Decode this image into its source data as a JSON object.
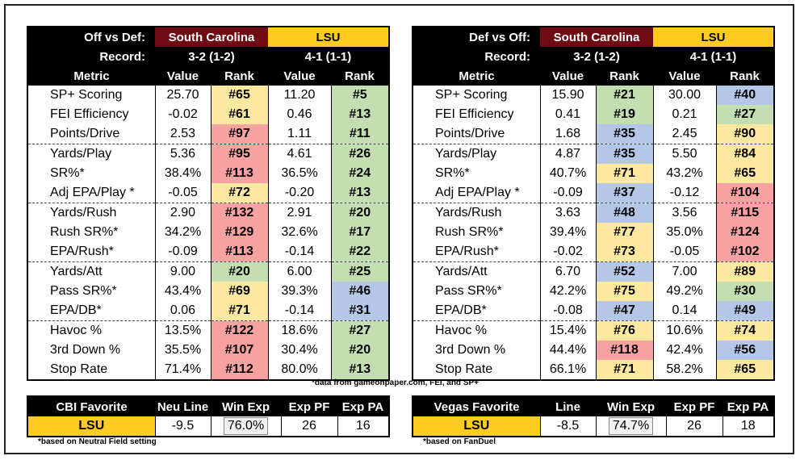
{
  "colors": {
    "sc": "#6f0b12",
    "lsu": "#fdcb22",
    "red": "#f8a3a1",
    "yellow": "#fde8a0",
    "green": "#c3deb1",
    "blue": "#b4c7e7"
  },
  "left_panel": {
    "title": "Off vs Def:",
    "team1": "South Carolina",
    "team2": "LSU",
    "record_label": "Record:",
    "team1_record": "3-2 (1-2)",
    "team2_record": "4-1 (1-1)",
    "col_metric": "Metric",
    "col_value": "Value",
    "col_rank": "Rank",
    "rows": [
      {
        "metric": "SP+ Scoring",
        "v1": "25.70",
        "r1": "#65",
        "c1": "yellow",
        "v2": "11.20",
        "r2": "#5",
        "c2": "green"
      },
      {
        "metric": "FEI Efficiency",
        "v1": "-0.02",
        "r1": "#61",
        "c1": "yellow",
        "v2": "0.46",
        "r2": "#13",
        "c2": "green"
      },
      {
        "metric": "Points/Drive",
        "v1": "2.53",
        "r1": "#97",
        "c1": "red",
        "v2": "1.11",
        "r2": "#11",
        "c2": "green"
      },
      {
        "metric": "Yards/Play",
        "v1": "5.36",
        "r1": "#95",
        "c1": "red",
        "v2": "4.61",
        "r2": "#26",
        "c2": "green"
      },
      {
        "metric": "SR%*",
        "v1": "38.4%",
        "r1": "#113",
        "c1": "red",
        "v2": "36.5%",
        "r2": "#24",
        "c2": "green"
      },
      {
        "metric": "Adj EPA/Play *",
        "v1": "-0.05",
        "r1": "#72",
        "c1": "yellow",
        "v2": "-0.20",
        "r2": "#13",
        "c2": "green"
      },
      {
        "metric": "Yards/Rush",
        "v1": "2.90",
        "r1": "#132",
        "c1": "red",
        "v2": "2.91",
        "r2": "#20",
        "c2": "green"
      },
      {
        "metric": "Rush SR%*",
        "v1": "34.2%",
        "r1": "#129",
        "c1": "red",
        "v2": "32.6%",
        "r2": "#17",
        "c2": "green"
      },
      {
        "metric": "EPA/Rush*",
        "v1": "-0.09",
        "r1": "#113",
        "c1": "red",
        "v2": "-0.14",
        "r2": "#22",
        "c2": "green"
      },
      {
        "metric": "Yards/Att",
        "v1": "9.00",
        "r1": "#20",
        "c1": "green",
        "v2": "6.00",
        "r2": "#25",
        "c2": "green"
      },
      {
        "metric": "Pass SR%*",
        "v1": "43.4%",
        "r1": "#69",
        "c1": "yellow",
        "v2": "39.3%",
        "r2": "#46",
        "c2": "blue"
      },
      {
        "metric": "EPA/DB*",
        "v1": "0.06",
        "r1": "#71",
        "c1": "yellow",
        "v2": "-0.14",
        "r2": "#31",
        "c2": "blue"
      },
      {
        "metric": "Havoc %",
        "v1": "13.5%",
        "r1": "#122",
        "c1": "red",
        "v2": "18.6%",
        "r2": "#27",
        "c2": "green"
      },
      {
        "metric": "3rd Down %",
        "v1": "35.5%",
        "r1": "#107",
        "c1": "red",
        "v2": "30.4%",
        "r2": "#20",
        "c2": "green"
      },
      {
        "metric": "Stop Rate",
        "v1": "71.4%",
        "r1": "#112",
        "c1": "red",
        "v2": "80.0%",
        "r2": "#13",
        "c2": "green"
      }
    ]
  },
  "right_panel": {
    "title": "Def vs Off:",
    "team1": "South Carolina",
    "team2": "LSU",
    "record_label": "Record:",
    "team1_record": "3-2 (1-2)",
    "team2_record": "4-1 (1-1)",
    "col_metric": "Metric",
    "col_value": "Value",
    "col_rank": "Rank",
    "rows": [
      {
        "metric": "SP+ Scoring",
        "v1": "15.90",
        "r1": "#21",
        "c1": "green",
        "v2": "30.00",
        "r2": "#40",
        "c2": "blue"
      },
      {
        "metric": "FEI Efficiency",
        "v1": "0.41",
        "r1": "#19",
        "c1": "green",
        "v2": "0.21",
        "r2": "#27",
        "c2": "green"
      },
      {
        "metric": "Points/Drive",
        "v1": "1.68",
        "r1": "#35",
        "c1": "blue",
        "v2": "2.45",
        "r2": "#90",
        "c2": "yellow"
      },
      {
        "metric": "Yards/Play",
        "v1": "4.87",
        "r1": "#35",
        "c1": "blue",
        "v2": "5.50",
        "r2": "#84",
        "c2": "yellow"
      },
      {
        "metric": "SR%*",
        "v1": "40.7%",
        "r1": "#71",
        "c1": "yellow",
        "v2": "43.2%",
        "r2": "#65",
        "c2": "yellow"
      },
      {
        "metric": "Adj EPA/Play *",
        "v1": "-0.09",
        "r1": "#37",
        "c1": "blue",
        "v2": "-0.12",
        "r2": "#104",
        "c2": "red"
      },
      {
        "metric": "Yards/Rush",
        "v1": "3.63",
        "r1": "#48",
        "c1": "blue",
        "v2": "3.56",
        "r2": "#115",
        "c2": "red"
      },
      {
        "metric": "Rush SR%*",
        "v1": "39.4%",
        "r1": "#77",
        "c1": "yellow",
        "v2": "35.0%",
        "r2": "#124",
        "c2": "red"
      },
      {
        "metric": "EPA/Rush*",
        "v1": "-0.02",
        "r1": "#73",
        "c1": "yellow",
        "v2": "-0.05",
        "r2": "#102",
        "c2": "red"
      },
      {
        "metric": "Yards/Att",
        "v1": "6.70",
        "r1": "#52",
        "c1": "blue",
        "v2": "7.00",
        "r2": "#89",
        "c2": "yellow"
      },
      {
        "metric": "Pass SR%*",
        "v1": "42.2%",
        "r1": "#75",
        "c1": "yellow",
        "v2": "49.2%",
        "r2": "#30",
        "c2": "green"
      },
      {
        "metric": "EPA/DB*",
        "v1": "-0.08",
        "r1": "#47",
        "c1": "blue",
        "v2": "0.14",
        "r2": "#49",
        "c2": "blue"
      },
      {
        "metric": "Havoc %",
        "v1": "15.4%",
        "r1": "#76",
        "c1": "yellow",
        "v2": "10.6%",
        "r2": "#74",
        "c2": "yellow"
      },
      {
        "metric": "3rd Down %",
        "v1": "44.4%",
        "r1": "#118",
        "c1": "red",
        "v2": "42.4%",
        "r2": "#56",
        "c2": "blue"
      },
      {
        "metric": "Stop Rate",
        "v1": "66.1%",
        "r1": "#71",
        "c1": "yellow",
        "v2": "58.2%",
        "r2": "#65",
        "c2": "yellow"
      }
    ]
  },
  "data_note": "*data from gameonpaper.com, FEI, and SP+",
  "cbi": {
    "headers": [
      "CBI Favorite",
      "Neu Line",
      "Win Exp",
      "Exp PF",
      "Exp PA"
    ],
    "team": "LSU",
    "line": "-9.5",
    "win_exp": "76.0%",
    "exp_pf": "26",
    "exp_pa": "16",
    "note": "*based on Neutral Field setting"
  },
  "vegas": {
    "headers": [
      "Vegas Favorite",
      "Line",
      "Win Exp",
      "Exp PF",
      "Exp PA"
    ],
    "team": "LSU",
    "line": "-8.5",
    "win_exp": "74.7%",
    "exp_pf": "26",
    "exp_pa": "18",
    "note": "*based on FanDuel"
  }
}
